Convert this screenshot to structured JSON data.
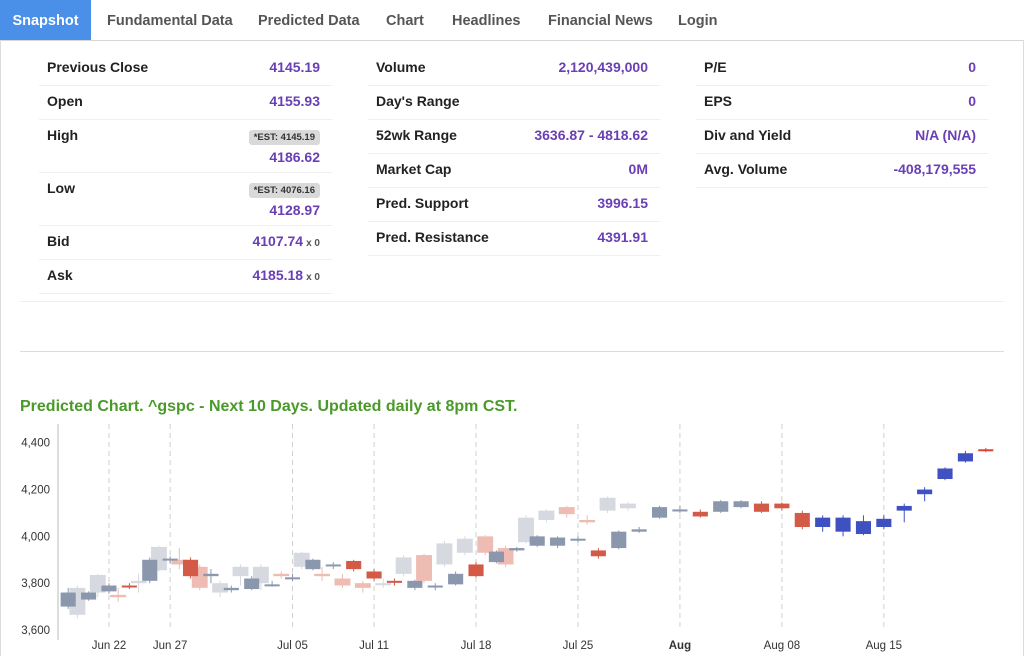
{
  "tabs": [
    {
      "label": "Snapshot",
      "active": true
    },
    {
      "label": "Fundamental Data"
    },
    {
      "label": "Predicted Data"
    },
    {
      "label": "Chart"
    },
    {
      "label": "Headlines"
    },
    {
      "label": "Financial News"
    },
    {
      "label": "Login"
    }
  ],
  "snapshot": {
    "col1": {
      "previous_close": {
        "label": "Previous Close",
        "value": "4145.19"
      },
      "open": {
        "label": "Open",
        "value": "4155.93"
      },
      "high": {
        "label": "High",
        "est": "*EST: 4145.19",
        "value": "4186.62"
      },
      "low": {
        "label": "Low",
        "est": "*EST: 4076.16",
        "value": "4128.97"
      },
      "bid": {
        "label": "Bid",
        "value": "4107.74",
        "size": "x 0"
      },
      "ask": {
        "label": "Ask",
        "value": "4185.18",
        "size": "x 0"
      }
    },
    "col2": {
      "volume": {
        "label": "Volume",
        "value": "2,120,439,000"
      },
      "days_range": {
        "label": "Day's Range",
        "value": ""
      },
      "wk52_range": {
        "label": "52wk Range",
        "value": "3636.87 - 4818.62"
      },
      "market_cap": {
        "label": "Market Cap",
        "value": "0M"
      },
      "pred_support": {
        "label": "Pred. Support",
        "value": "3996.15"
      },
      "pred_resistance": {
        "label": "Pred. Resistance",
        "value": "4391.91"
      }
    },
    "col3": {
      "pe": {
        "label": "P/E",
        "value": "0"
      },
      "eps": {
        "label": "EPS",
        "value": "0"
      },
      "div_yield": {
        "label": "Div and Yield",
        "value": "N/A (N/A)"
      },
      "avg_volume": {
        "label": "Avg. Volume",
        "value": "-408,179,555"
      }
    }
  },
  "chart": {
    "title": "Predicted Chart. ^gspc - Next 10 Days. Updated daily at 8pm CST."
  },
  "chart_data": {
    "type": "candlestick",
    "ylim": [
      3600,
      4480
    ],
    "yticks": [
      3600,
      3800,
      4000,
      4200,
      4400
    ],
    "ytick_labels": [
      "3,600",
      "3,800",
      "4,000",
      "4,200",
      "4,400"
    ],
    "xticks": [
      {
        "label": "Jun 22",
        "index": 2,
        "bold": false
      },
      {
        "label": "Jun 27",
        "index": 5,
        "bold": false
      },
      {
        "label": "Jul 05",
        "index": 11,
        "bold": false
      },
      {
        "label": "Jul 11",
        "index": 15,
        "bold": false
      },
      {
        "label": "Jul 18",
        "index": 20,
        "bold": false
      },
      {
        "label": "Jul 25",
        "index": 25,
        "bold": false
      },
      {
        "label": "Aug",
        "index": 30,
        "bold": true
      },
      {
        "label": "Aug 08",
        "index": 35,
        "bold": false
      },
      {
        "label": "Aug 15",
        "index": 40,
        "bold": false
      }
    ],
    "legend": {
      "historical_up": "#8a97ad",
      "historical_down": "#d35a47",
      "history_shadow_up": "#d6d9e0",
      "history_shadow_down": "#eebcb3",
      "predicted_up": "#3f51c0",
      "predicted_down": "#e0402f"
    },
    "series": [
      {
        "name": "actual",
        "values": [
          [
            3760,
            3700,
            3780,
            3690,
            "up"
          ],
          [
            3730,
            3760,
            3765,
            3725,
            "up"
          ],
          [
            3765,
            3790,
            3800,
            3755,
            "up"
          ],
          [
            3790,
            3785,
            3800,
            3775,
            "down"
          ],
          [
            3810,
            3900,
            3910,
            3800,
            "up"
          ],
          [
            3900,
            3905,
            3915,
            3885,
            "up"
          ],
          [
            3900,
            3830,
            3910,
            3820,
            "down"
          ],
          [
            3830,
            3840,
            3860,
            3800,
            "up"
          ],
          [
            3770,
            3780,
            3790,
            3760,
            "up"
          ],
          [
            3775,
            3820,
            3830,
            3770,
            "up"
          ],
          [
            3790,
            3795,
            3810,
            3785,
            "up"
          ],
          [
            3820,
            3825,
            3840,
            3810,
            "up"
          ],
          [
            3860,
            3900,
            3905,
            3855,
            "up"
          ],
          [
            3875,
            3880,
            3890,
            3860,
            "up"
          ],
          [
            3895,
            3860,
            3900,
            3850,
            "down"
          ],
          [
            3850,
            3820,
            3860,
            3810,
            "down"
          ],
          [
            3805,
            3810,
            3820,
            3790,
            "down"
          ],
          [
            3780,
            3810,
            3815,
            3770,
            "up"
          ],
          [
            3785,
            3790,
            3800,
            3770,
            "up"
          ],
          [
            3795,
            3840,
            3850,
            3790,
            "up"
          ],
          [
            3880,
            3830,
            3890,
            3825,
            "down"
          ],
          [
            3890,
            3935,
            3940,
            3885,
            "up"
          ],
          [
            3940,
            3950,
            3955,
            3935,
            "up"
          ],
          [
            3960,
            4000,
            4005,
            3955,
            "up"
          ],
          [
            3960,
            3995,
            4000,
            3950,
            "up"
          ],
          [
            3985,
            3990,
            4000,
            3975,
            "up"
          ],
          [
            3940,
            3915,
            3950,
            3905,
            "down"
          ],
          [
            3950,
            4020,
            4025,
            3945,
            "up"
          ],
          [
            4020,
            4030,
            4040,
            4015,
            "up"
          ],
          [
            4080,
            4125,
            4130,
            4075,
            "up"
          ],
          [
            4110,
            4115,
            4130,
            4100,
            "up"
          ],
          [
            4105,
            4085,
            4115,
            4080,
            "down"
          ],
          [
            4105,
            4150,
            4155,
            4100,
            "up"
          ],
          [
            4125,
            4150,
            4155,
            4120,
            "up"
          ],
          [
            4140,
            4105,
            4150,
            4100,
            "down"
          ],
          [
            4140,
            4120,
            4145,
            4110,
            "down"
          ],
          [
            4100,
            4040,
            4110,
            4030,
            "down"
          ]
        ]
      },
      {
        "name": "predicted",
        "values": [
          [
            4040,
            4080,
            4090,
            4020,
            "up"
          ],
          [
            4020,
            4080,
            4090,
            4000,
            "up"
          ],
          [
            4010,
            4065,
            4090,
            4005,
            "up"
          ],
          [
            4040,
            4075,
            4090,
            4030,
            "up"
          ],
          [
            4110,
            4130,
            4140,
            4060,
            "up"
          ],
          [
            4180,
            4200,
            4210,
            4150,
            "up"
          ],
          [
            4245,
            4290,
            4295,
            4240,
            "up"
          ],
          [
            4320,
            4355,
            4365,
            4315,
            "up"
          ],
          [
            4368,
            4372,
            4378,
            4360,
            "down"
          ]
        ]
      },
      {
        "name": "history",
        "values": [
          [
            3665,
            3780,
            3790,
            3650,
            "up"
          ],
          [
            3760,
            3835,
            3840,
            3740,
            "up"
          ],
          [
            3740,
            3750,
            3780,
            3720,
            "down"
          ],
          [
            3800,
            3810,
            3840,
            3760,
            "up"
          ],
          [
            3855,
            3955,
            3960,
            3850,
            "up"
          ],
          [
            3900,
            3880,
            3950,
            3860,
            "down"
          ],
          [
            3870,
            3780,
            3880,
            3770,
            "down"
          ],
          [
            3760,
            3800,
            3810,
            3740,
            "up"
          ],
          [
            3830,
            3870,
            3880,
            3790,
            "up"
          ],
          [
            3800,
            3870,
            3880,
            3770,
            "up"
          ],
          [
            3840,
            3830,
            3850,
            3820,
            "down"
          ],
          [
            3870,
            3930,
            3935,
            3860,
            "up"
          ],
          [
            3840,
            3830,
            3870,
            3810,
            "down"
          ],
          [
            3820,
            3790,
            3840,
            3780,
            "down"
          ],
          [
            3800,
            3780,
            3810,
            3760,
            "down"
          ],
          [
            3800,
            3800,
            3820,
            3780,
            "up"
          ],
          [
            3840,
            3910,
            3920,
            3830,
            "up"
          ],
          [
            3810,
            3920,
            3925,
            3800,
            "down"
          ],
          [
            3880,
            3970,
            3980,
            3870,
            "up"
          ],
          [
            3930,
            3990,
            4000,
            3920,
            "up"
          ],
          [
            3930,
            4000,
            4005,
            3920,
            "down"
          ],
          [
            3880,
            3950,
            3960,
            3870,
            "down"
          ],
          [
            3975,
            4080,
            4090,
            3970,
            "up"
          ],
          [
            4070,
            4110,
            4115,
            4060,
            "up"
          ],
          [
            4095,
            4125,
            4130,
            4080,
            "down"
          ],
          [
            4060,
            4070,
            4090,
            4050,
            "down"
          ],
          [
            4110,
            4165,
            4170,
            4100,
            "up"
          ],
          [
            4120,
            4140,
            4145,
            4110,
            "up"
          ]
        ]
      }
    ]
  }
}
